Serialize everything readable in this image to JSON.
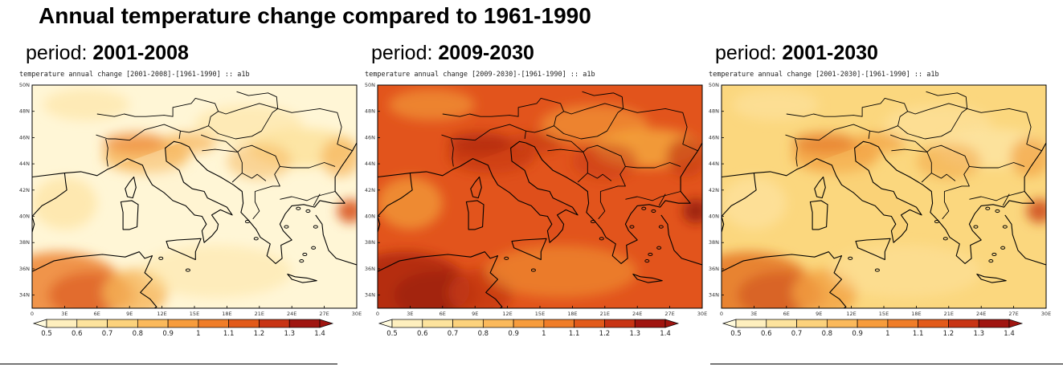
{
  "title": "Annual temperature change compared to 1961-1990",
  "panels": [
    {
      "period_label": "period:",
      "period": "2001-2008",
      "subtitle": "temperature annual change [2001-2008]-[1961-1990] :: a1b",
      "theme": "light",
      "right_edge_label": "30E"
    },
    {
      "period_label": "period:",
      "period": "2009-2030",
      "subtitle": "temperature annual change [2009-2030]-[1961-1990] :: a1b",
      "theme": "dark",
      "right_edge_label": "30E"
    },
    {
      "period_label": "period:",
      "period": "2001-2030",
      "subtitle": "temperature annual change [2001-2030]-[1961-1990] :: a1b",
      "theme": "mid",
      "right_edge_label": "30E"
    }
  ],
  "axes": {
    "lat_labels": [
      "50N",
      "48N",
      "46N",
      "44N",
      "42N",
      "40N",
      "38N",
      "36N",
      "34N"
    ],
    "lon_labels": [
      "0",
      "3E",
      "6E",
      "9E",
      "12E",
      "15E",
      "18E",
      "21E",
      "24E",
      "27E"
    ]
  },
  "colorbar": {
    "labels": [
      "0.5",
      "0.6",
      "0.7",
      "0.8",
      "0.9",
      "1",
      "1.1",
      "1.2",
      "1.3",
      "1.4"
    ],
    "colors": [
      "#fffadc",
      "#feefbe",
      "#fde39d",
      "#fcd27c",
      "#fbb95b",
      "#f79c3c",
      "#f07d28",
      "#e25a1a",
      "#c83414",
      "#a01510"
    ]
  },
  "palette": {
    "light": {
      "base": "#fff6d6",
      "land": "#fff2cc",
      "warm": "#fde3a0",
      "hot": "#f6b458",
      "hotter": "#ee8a3a",
      "hottest": "#d9541c"
    },
    "dark": {
      "base": "#e2541c",
      "land": "#d9481a",
      "warm": "#f3a13a",
      "hot": "#c63a14",
      "hotter": "#b02a10",
      "hottest": "#981d0c"
    },
    "mid": {
      "base": "#fbd77e",
      "land": "#f9c86a",
      "warm": "#fde3a0",
      "hot": "#f2a142",
      "hotter": "#e67a2a",
      "hottest": "#cf4f1c"
    }
  }
}
